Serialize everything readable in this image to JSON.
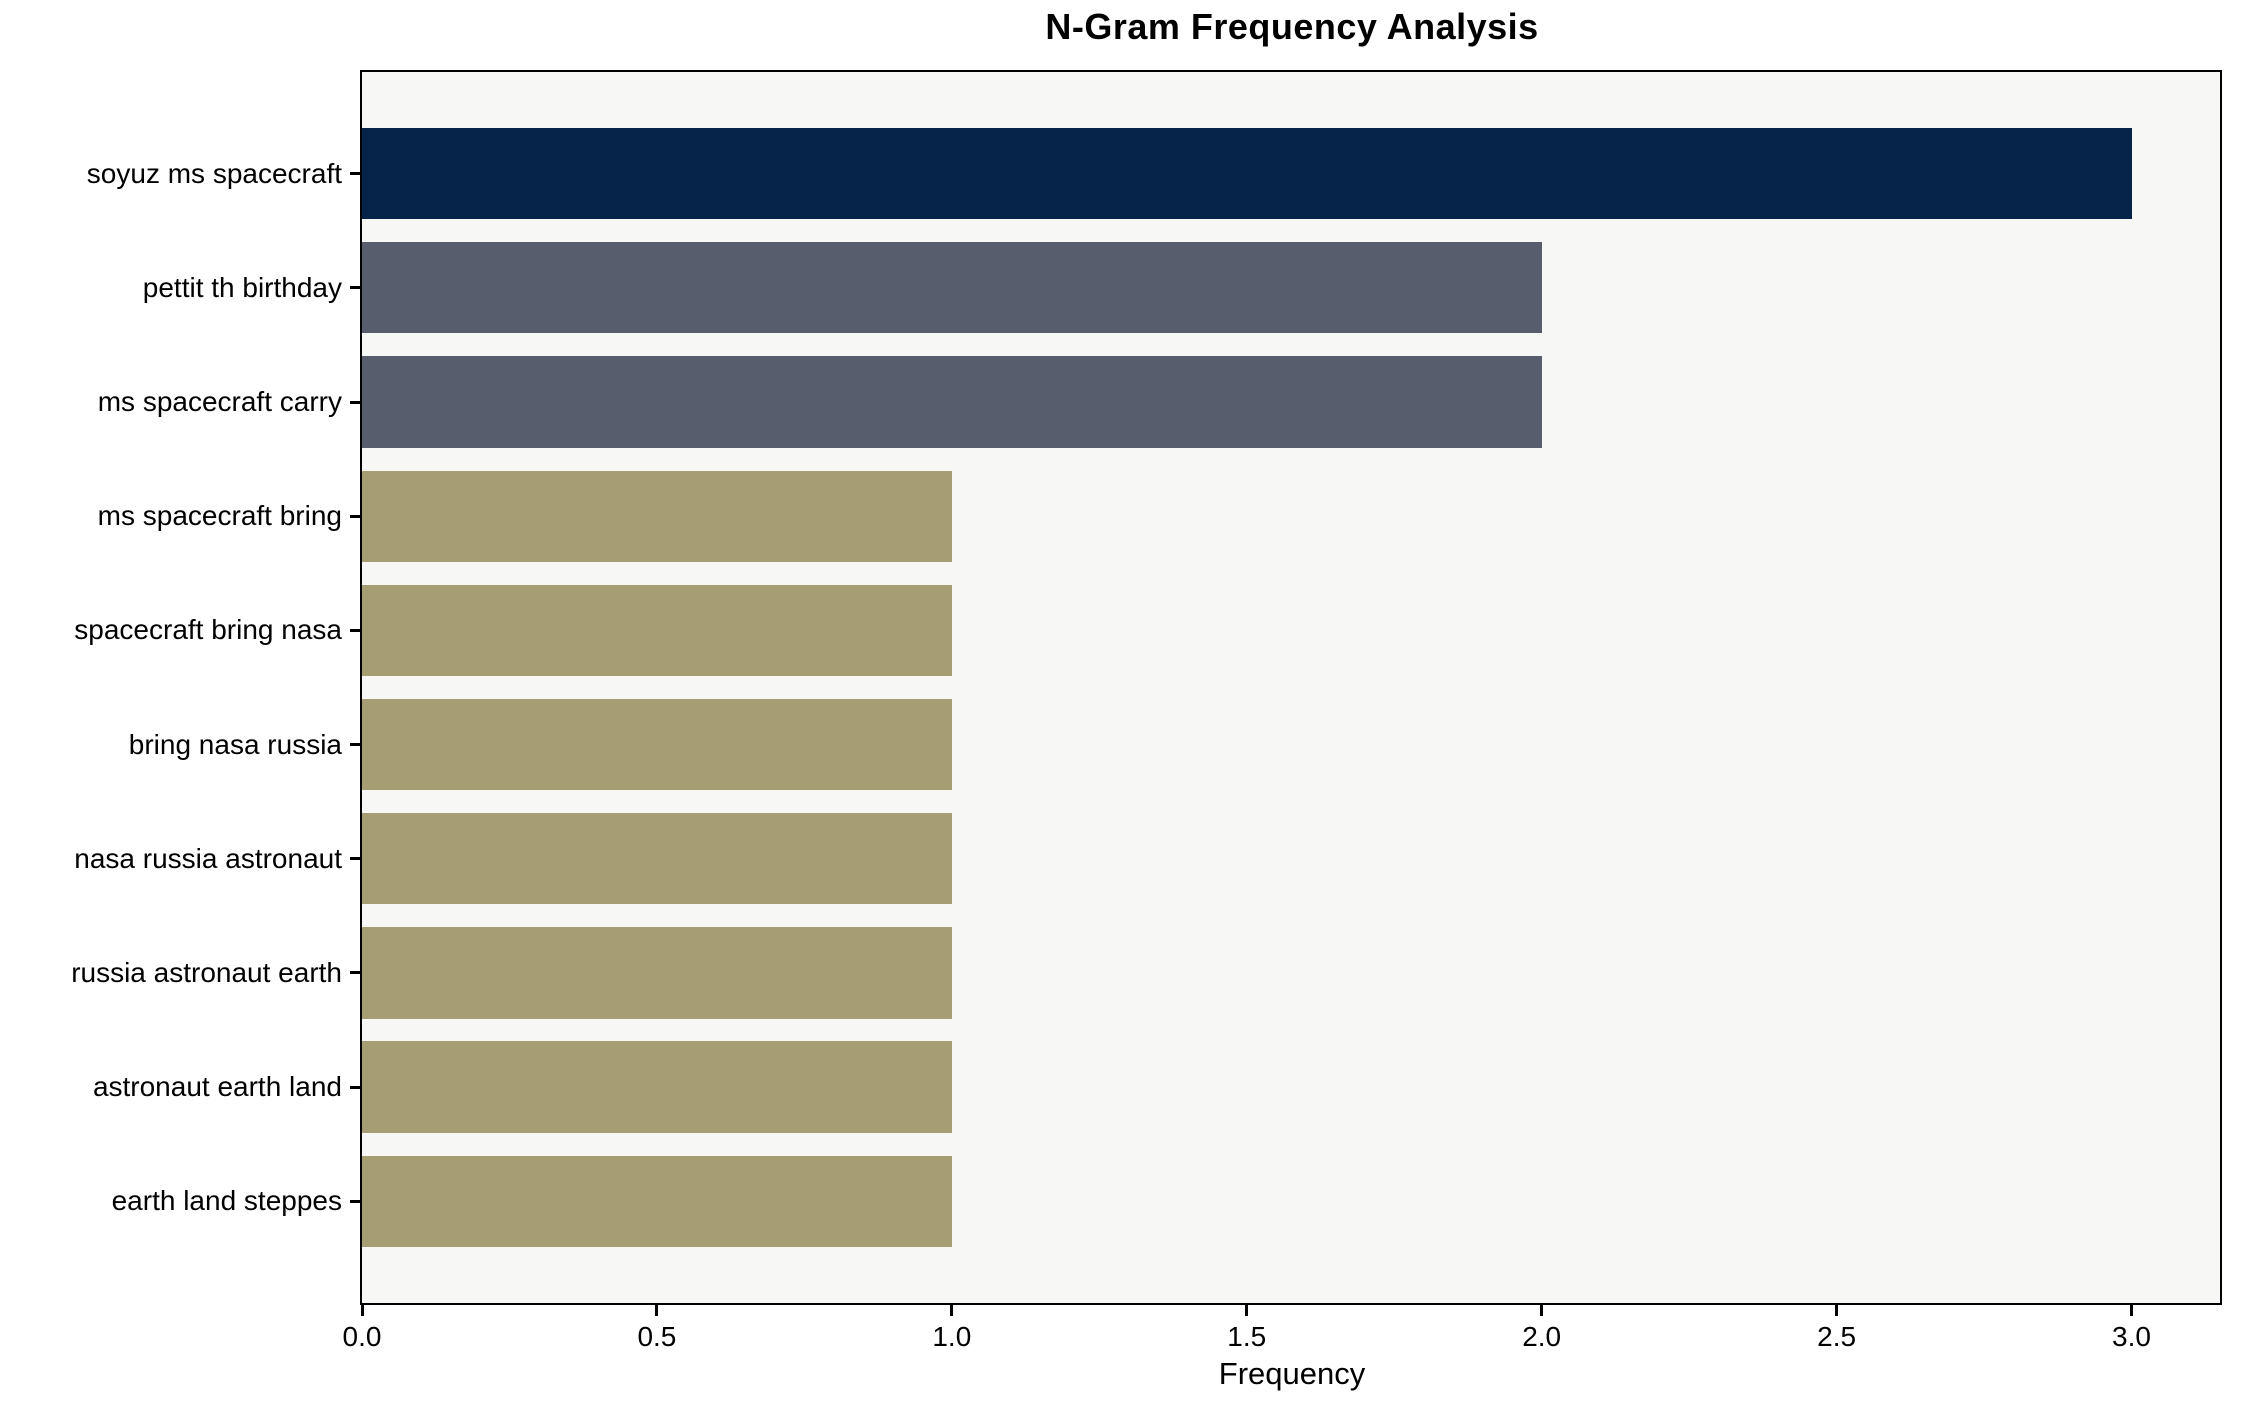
{
  "title": "N-Gram Frequency Analysis",
  "chart_data": {
    "type": "bar",
    "orientation": "horizontal",
    "title": "N-Gram Frequency Analysis",
    "xlabel": "Frequency",
    "ylabel": "",
    "categories": [
      "soyuz ms spacecraft",
      "pettit th birthday",
      "ms spacecraft carry",
      "ms spacecraft bring",
      "spacecraft bring nasa",
      "bring nasa russia",
      "nasa russia astronaut",
      "russia astronaut earth",
      "astronaut earth land",
      "earth land steppes"
    ],
    "values": [
      3,
      2,
      2,
      1,
      1,
      1,
      1,
      1,
      1,
      1
    ],
    "bar_colors": [
      "#06244a",
      "#575d6c",
      "#575d6c",
      "#a69d73",
      "#a69d73",
      "#a69d73",
      "#a69d73",
      "#a69d73",
      "#a69d73",
      "#a69d73"
    ],
    "xticks": [
      0.0,
      0.5,
      1.0,
      1.5,
      2.0,
      2.5,
      3.0
    ],
    "xtick_labels": [
      "0.0",
      "0.5",
      "1.0",
      "1.5",
      "2.0",
      "2.5",
      "3.0"
    ],
    "xlim": [
      0,
      3.15
    ],
    "grid": false,
    "legend": null,
    "colors": {
      "plot_background": "#f7f7f5",
      "figure_background": "#ffffff",
      "spine": "#000000",
      "text": "#000000"
    }
  }
}
